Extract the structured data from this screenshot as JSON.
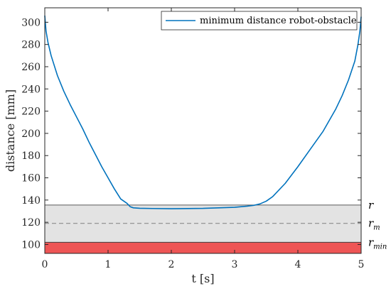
{
  "chart_data": {
    "type": "line",
    "title": "",
    "xlabel": "t [s]",
    "ylabel": "distance [mm]",
    "xlim": [
      0,
      5
    ],
    "ylim": [
      92,
      313
    ],
    "xticks": [
      0,
      1,
      2,
      3,
      4,
      5
    ],
    "yticks": [
      100,
      120,
      140,
      160,
      180,
      200,
      220,
      240,
      260,
      280,
      300
    ],
    "grid": false,
    "legend_position": "top-right",
    "series": [
      {
        "name": "minimum distance robot-obstacle",
        "color": "#0072bd",
        "x": [
          0,
          0.02,
          0.05,
          0.1,
          0.2,
          0.3,
          0.4,
          0.5,
          0.6,
          0.7,
          0.8,
          0.9,
          1.0,
          1.1,
          1.2,
          1.3,
          1.35,
          1.4,
          1.5,
          1.7,
          2.0,
          2.5,
          3.0,
          3.2,
          3.3,
          3.4,
          3.5,
          3.6,
          3.8,
          4.0,
          4.2,
          4.4,
          4.6,
          4.7,
          4.8,
          4.9,
          4.95,
          4.98,
          5.0
        ],
        "y": [
          306,
          292,
          282,
          270,
          252,
          238,
          226,
          215,
          204,
          192,
          181,
          170,
          160,
          150,
          141,
          137,
          134,
          133,
          132.6,
          132.4,
          132.2,
          132.5,
          133.5,
          134.5,
          135.2,
          136.5,
          139,
          143,
          155,
          170,
          186,
          202,
          222,
          234,
          248,
          265,
          280,
          292,
          305
        ]
      }
    ],
    "bands": [
      {
        "label": "r",
        "sub": "",
        "y": 135.5,
        "color": "#595959"
      },
      {
        "label": "r",
        "sub": "m",
        "y": 119,
        "color": "#7f7f7f"
      },
      {
        "label": "r",
        "sub": "min",
        "y": 102,
        "color": "#404040"
      }
    ],
    "fills": [
      {
        "from": 102,
        "to": 135.5,
        "color": "#e3e3e3"
      },
      {
        "from": 92,
        "to": 102,
        "color": "#ee5555"
      }
    ]
  }
}
